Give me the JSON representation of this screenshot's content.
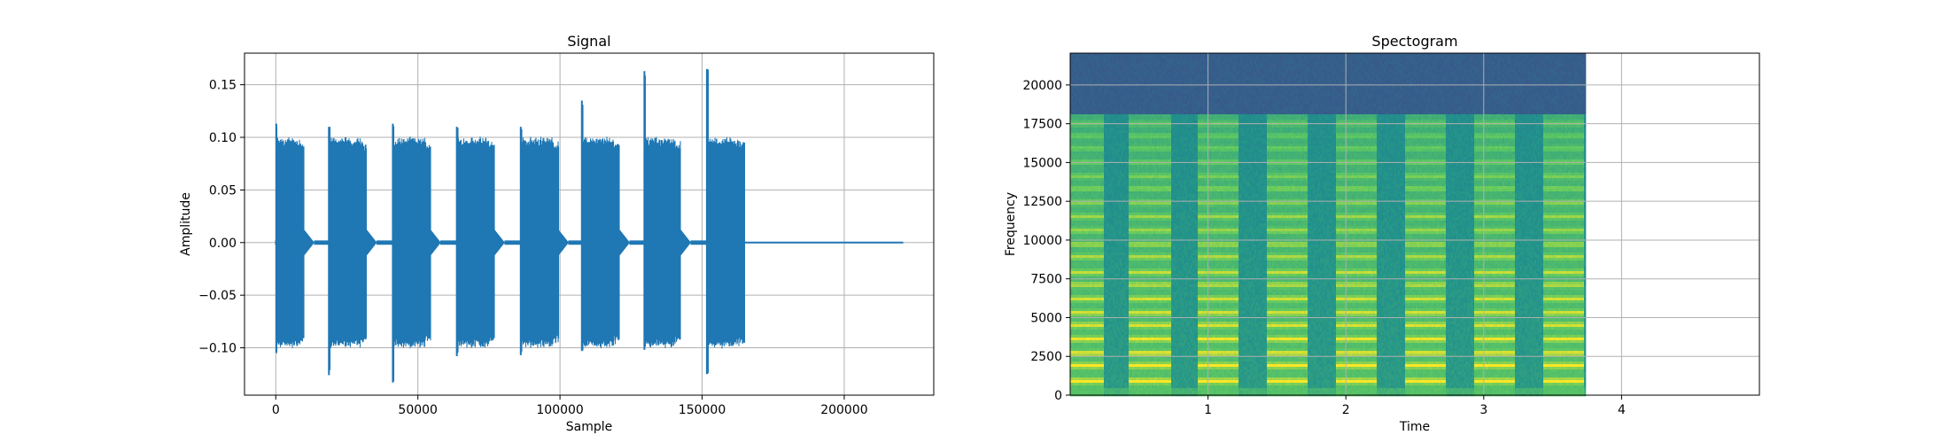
{
  "charts": [
    {
      "title": "Signal",
      "xlabel": "Sample",
      "ylabel": "Amplitude",
      "xticks": [
        "0",
        "50000",
        "100000",
        "150000",
        "200000"
      ],
      "yticks": [
        "−0.10",
        "−0.05",
        "0.00",
        "0.05",
        "0.10",
        "0.15"
      ]
    },
    {
      "title": "Spectogram",
      "xlabel": "Time",
      "ylabel": "Frequency",
      "xticks": [
        "1",
        "2",
        "3",
        "4"
      ],
      "yticks": [
        "0",
        "2500",
        "5000",
        "7500",
        "10000",
        "12500",
        "15000",
        "17500",
        "20000"
      ]
    }
  ],
  "chart_data": [
    {
      "type": "line",
      "title": "Signal",
      "xlabel": "Sample",
      "ylabel": "Amplitude",
      "xlim": [
        -11000,
        231500
      ],
      "ylim": [
        -0.145,
        0.18
      ],
      "xticks": [
        0,
        50000,
        100000,
        150000,
        200000
      ],
      "yticks": [
        -0.1,
        -0.05,
        0.0,
        0.05,
        0.1,
        0.15
      ],
      "grid": true,
      "color": "#1f77b4",
      "total_samples": 220500,
      "bursts": [
        {
          "start": 0,
          "end": 10000,
          "max": 0.113,
          "min": -0.105
        },
        {
          "start": 18500,
          "end": 32000,
          "max": 0.11,
          "min": -0.126
        },
        {
          "start": 41000,
          "end": 54500,
          "max": 0.113,
          "min": -0.133
        },
        {
          "start": 63500,
          "end": 77000,
          "max": 0.11,
          "min": -0.108
        },
        {
          "start": 86000,
          "end": 99500,
          "max": 0.11,
          "min": -0.107
        },
        {
          "start": 107500,
          "end": 121000,
          "max": 0.135,
          "min": -0.103
        },
        {
          "start": 129500,
          "end": 142500,
          "max": 0.163,
          "min": -0.102
        },
        {
          "start": 151500,
          "end": 165000,
          "max": 0.165,
          "min": -0.125
        }
      ]
    },
    {
      "type": "heatmap",
      "title": "Spectogram",
      "xlabel": "Time",
      "ylabel": "Frequency",
      "xlim": [
        0,
        5.0
      ],
      "ylim": [
        0,
        22050
      ],
      "xticks": [
        1,
        2,
        3,
        4
      ],
      "yticks": [
        0,
        2500,
        5000,
        7500,
        10000,
        12500,
        15000,
        17500,
        20000
      ],
      "grid": true,
      "colormap": "viridis",
      "data_end_time": 3.74,
      "cutoff_frequency": 18200,
      "tone_times": [
        [
          0,
          0.24
        ],
        [
          0.42,
          0.72
        ],
        [
          0.92,
          1.22
        ],
        [
          1.42,
          1.72
        ],
        [
          1.92,
          2.22
        ],
        [
          2.42,
          2.72
        ],
        [
          2.92,
          3.22
        ],
        [
          3.42,
          3.72
        ]
      ],
      "harmonic_bands_hz": [
        1000,
        2000,
        2800,
        3700,
        4600,
        5400,
        6300,
        7200,
        8000,
        9000,
        9800,
        10700,
        11600,
        12500,
        13400,
        14200,
        15100,
        16000,
        16800,
        17600
      ]
    }
  ]
}
